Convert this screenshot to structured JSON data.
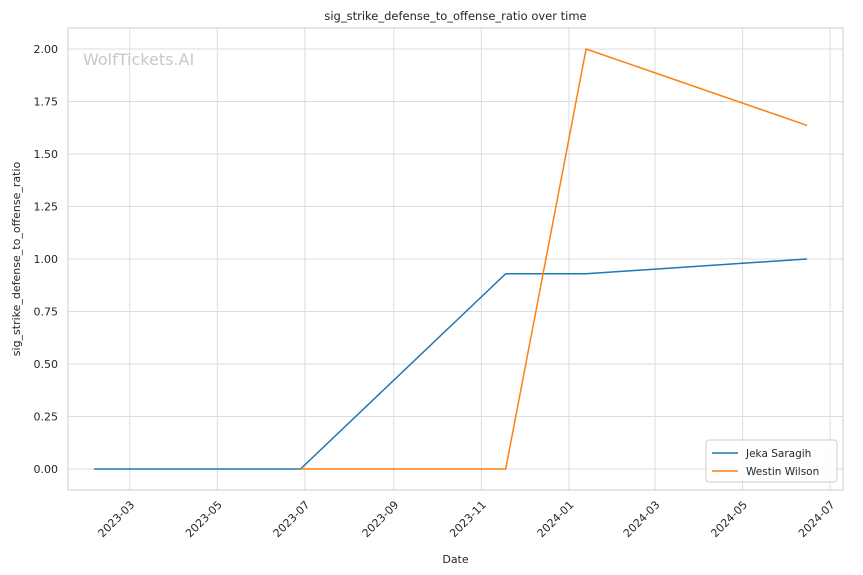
{
  "chart_data": {
    "type": "line",
    "title": "sig_strike_defense_to_offense_ratio over time",
    "xlabel": "Date",
    "ylabel": "sig_strike_defense_to_offense_ratio",
    "watermark": "WolfTickets.AI",
    "grid": true,
    "legend_position": "bottom-right",
    "xlim": [
      "2023-01-17",
      "2024-07-10"
    ],
    "ylim": [
      -0.1,
      2.1
    ],
    "x_ticks": [
      "2023-03-01",
      "2023-05-01",
      "2023-07-01",
      "2023-09-01",
      "2023-11-01",
      "2024-01-01",
      "2024-03-01",
      "2024-05-01",
      "2024-07-01"
    ],
    "x_tick_labels": [
      "2023-03",
      "2023-05",
      "2023-07",
      "2023-09",
      "2023-11",
      "2024-01",
      "2024-03",
      "2024-05",
      "2024-07"
    ],
    "y_ticks": [
      0.0,
      0.25,
      0.5,
      0.75,
      1.0,
      1.25,
      1.5,
      1.75,
      2.0
    ],
    "y_tick_labels": [
      "0.00",
      "0.25",
      "0.50",
      "0.75",
      "1.00",
      "1.25",
      "1.50",
      "1.75",
      "2.00"
    ],
    "series": [
      {
        "name": "Jeka Saragih",
        "color": "#1f77b4",
        "x": [
          "2023-02-04",
          "2023-06-28",
          "2023-11-18",
          "2024-01-13",
          "2024-06-15"
        ],
        "y": [
          0.0,
          0.0,
          0.93,
          0.93,
          1.0
        ]
      },
      {
        "name": "Westin Wilson",
        "color": "#ff7f0e",
        "x": [
          "2023-06-28",
          "2023-11-18",
          "2024-01-13",
          "2024-06-15"
        ],
        "y": [
          0.0,
          0.0,
          2.0,
          1.636
        ]
      }
    ]
  }
}
